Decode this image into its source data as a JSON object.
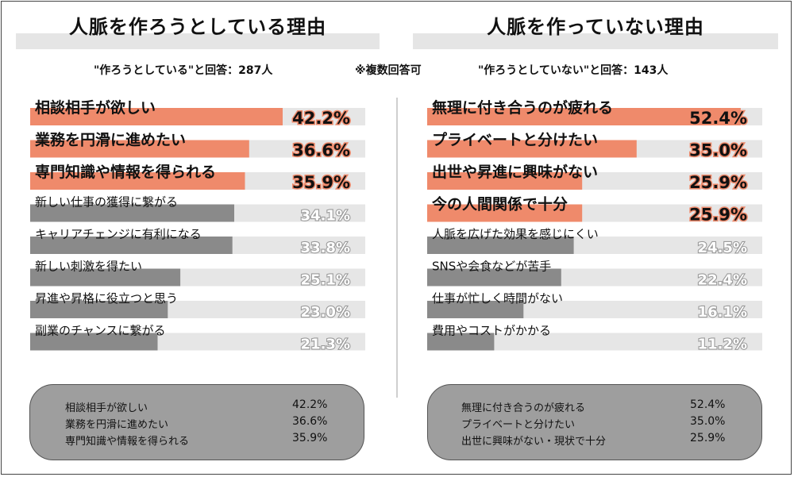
{
  "colors": {
    "highlight": "#ef8a6b",
    "normal": "#8a8a8a",
    "track": "#e6e6e6",
    "highlight_text": "#b22d1c"
  },
  "left": {
    "title": "人脈を作ろうとしている理由",
    "subtitle": "\"作ろうとしている\"と回答：287人"
  },
  "note": "※複数回答可",
  "right": {
    "title": "人脈を作っていない理由",
    "subtitle": "\"作ろうとしていない\"と回答：143人"
  },
  "chart_data": [
    {
      "type": "bar",
      "orientation": "horizontal",
      "title": "人脈を作ろうとしている理由",
      "categories": [
        "相談相手が欲しい",
        "業務を円滑に進めたい",
        "専門知識や情報を得られる",
        "新しい仕事の獲得に繋がる",
        "キャリアチェンジに有利になる",
        "新しい刺激を得たい",
        "昇進や昇格に役立つと思う",
        "副業のチャンスに繋がる"
      ],
      "values": [
        42.2,
        36.6,
        35.9,
        34.1,
        33.8,
        25.1,
        23.0,
        21.3
      ],
      "labels": [
        "42.2%",
        "36.6%",
        "35.9%",
        "34.1%",
        "33.8%",
        "25.1%",
        "23.0%",
        "21.3%"
      ],
      "highlighted_count": 3,
      "xlim": [
        0,
        56
      ]
    },
    {
      "type": "bar",
      "orientation": "horizontal",
      "title": "人脈を作っていない理由",
      "categories": [
        "無理に付き合うのが疲れる",
        "プライベートと分けたい",
        "出世や昇進に興味がない",
        "今の人間関係で十分",
        "人脈を広げた効果を感じにくい",
        "SNSや会食などが苦手",
        "仕事が忙しく時間がない",
        "費用やコストがかかる"
      ],
      "values": [
        52.4,
        35.0,
        25.9,
        25.9,
        24.5,
        22.4,
        16.1,
        11.2
      ],
      "labels": [
        "52.4%",
        "35.0%",
        "25.9%",
        "25.9%",
        "24.5%",
        "22.4%",
        "16.1%",
        "11.2%"
      ],
      "highlighted_count": 4,
      "xlim": [
        0,
        56
      ]
    }
  ],
  "summary_left": [
    {
      "label": "相談相手が欲しい",
      "value": "42.2%"
    },
    {
      "label": "業務を円滑に進めたい",
      "value": "36.6%"
    },
    {
      "label": "専門知識や情報を得られる",
      "value": "35.9%"
    }
  ],
  "summary_right": [
    {
      "label": "無理に付き合うのが疲れる",
      "value": "52.4%"
    },
    {
      "label": "プライベートと分けたい",
      "value": "35.0%"
    },
    {
      "label": "出世に興味がない・現状で十分",
      "value": "25.9%"
    }
  ]
}
